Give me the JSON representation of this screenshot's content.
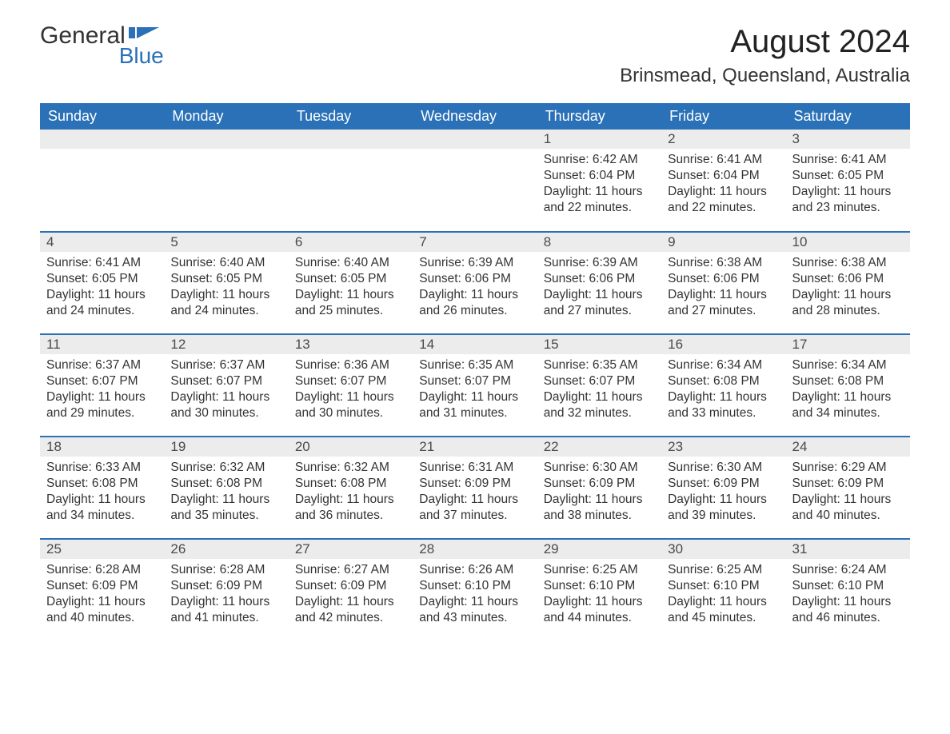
{
  "logo": {
    "word1": "General",
    "word2": "Blue",
    "brand_color": "#2a71b8"
  },
  "title": "August 2024",
  "location": "Brinsmead, Queensland, Australia",
  "colors": {
    "header_bg": "#2a71b8",
    "header_text": "#ffffff",
    "daynum_bg": "#ececec",
    "row_divider": "#2a71b8",
    "body_text": "#333333",
    "page_bg": "#ffffff"
  },
  "typography": {
    "title_fontsize_pt": 30,
    "location_fontsize_pt": 18,
    "header_fontsize_pt": 14,
    "body_fontsize_pt": 12
  },
  "day_headers": [
    "Sunday",
    "Monday",
    "Tuesday",
    "Wednesday",
    "Thursday",
    "Friday",
    "Saturday"
  ],
  "weeks": [
    [
      null,
      null,
      null,
      null,
      {
        "n": "1",
        "sunrise": "6:42 AM",
        "sunset": "6:04 PM",
        "dl_h": "11",
        "dl_m": "22"
      },
      {
        "n": "2",
        "sunrise": "6:41 AM",
        "sunset": "6:04 PM",
        "dl_h": "11",
        "dl_m": "22"
      },
      {
        "n": "3",
        "sunrise": "6:41 AM",
        "sunset": "6:05 PM",
        "dl_h": "11",
        "dl_m": "23"
      }
    ],
    [
      {
        "n": "4",
        "sunrise": "6:41 AM",
        "sunset": "6:05 PM",
        "dl_h": "11",
        "dl_m": "24"
      },
      {
        "n": "5",
        "sunrise": "6:40 AM",
        "sunset": "6:05 PM",
        "dl_h": "11",
        "dl_m": "24"
      },
      {
        "n": "6",
        "sunrise": "6:40 AM",
        "sunset": "6:05 PM",
        "dl_h": "11",
        "dl_m": "25"
      },
      {
        "n": "7",
        "sunrise": "6:39 AM",
        "sunset": "6:06 PM",
        "dl_h": "11",
        "dl_m": "26"
      },
      {
        "n": "8",
        "sunrise": "6:39 AM",
        "sunset": "6:06 PM",
        "dl_h": "11",
        "dl_m": "27"
      },
      {
        "n": "9",
        "sunrise": "6:38 AM",
        "sunset": "6:06 PM",
        "dl_h": "11",
        "dl_m": "27"
      },
      {
        "n": "10",
        "sunrise": "6:38 AM",
        "sunset": "6:06 PM",
        "dl_h": "11",
        "dl_m": "28"
      }
    ],
    [
      {
        "n": "11",
        "sunrise": "6:37 AM",
        "sunset": "6:07 PM",
        "dl_h": "11",
        "dl_m": "29"
      },
      {
        "n": "12",
        "sunrise": "6:37 AM",
        "sunset": "6:07 PM",
        "dl_h": "11",
        "dl_m": "30"
      },
      {
        "n": "13",
        "sunrise": "6:36 AM",
        "sunset": "6:07 PM",
        "dl_h": "11",
        "dl_m": "30"
      },
      {
        "n": "14",
        "sunrise": "6:35 AM",
        "sunset": "6:07 PM",
        "dl_h": "11",
        "dl_m": "31"
      },
      {
        "n": "15",
        "sunrise": "6:35 AM",
        "sunset": "6:07 PM",
        "dl_h": "11",
        "dl_m": "32"
      },
      {
        "n": "16",
        "sunrise": "6:34 AM",
        "sunset": "6:08 PM",
        "dl_h": "11",
        "dl_m": "33"
      },
      {
        "n": "17",
        "sunrise": "6:34 AM",
        "sunset": "6:08 PM",
        "dl_h": "11",
        "dl_m": "34"
      }
    ],
    [
      {
        "n": "18",
        "sunrise": "6:33 AM",
        "sunset": "6:08 PM",
        "dl_h": "11",
        "dl_m": "34"
      },
      {
        "n": "19",
        "sunrise": "6:32 AM",
        "sunset": "6:08 PM",
        "dl_h": "11",
        "dl_m": "35"
      },
      {
        "n": "20",
        "sunrise": "6:32 AM",
        "sunset": "6:08 PM",
        "dl_h": "11",
        "dl_m": "36"
      },
      {
        "n": "21",
        "sunrise": "6:31 AM",
        "sunset": "6:09 PM",
        "dl_h": "11",
        "dl_m": "37"
      },
      {
        "n": "22",
        "sunrise": "6:30 AM",
        "sunset": "6:09 PM",
        "dl_h": "11",
        "dl_m": "38"
      },
      {
        "n": "23",
        "sunrise": "6:30 AM",
        "sunset": "6:09 PM",
        "dl_h": "11",
        "dl_m": "39"
      },
      {
        "n": "24",
        "sunrise": "6:29 AM",
        "sunset": "6:09 PM",
        "dl_h": "11",
        "dl_m": "40"
      }
    ],
    [
      {
        "n": "25",
        "sunrise": "6:28 AM",
        "sunset": "6:09 PM",
        "dl_h": "11",
        "dl_m": "40"
      },
      {
        "n": "26",
        "sunrise": "6:28 AM",
        "sunset": "6:09 PM",
        "dl_h": "11",
        "dl_m": "41"
      },
      {
        "n": "27",
        "sunrise": "6:27 AM",
        "sunset": "6:09 PM",
        "dl_h": "11",
        "dl_m": "42"
      },
      {
        "n": "28",
        "sunrise": "6:26 AM",
        "sunset": "6:10 PM",
        "dl_h": "11",
        "dl_m": "43"
      },
      {
        "n": "29",
        "sunrise": "6:25 AM",
        "sunset": "6:10 PM",
        "dl_h": "11",
        "dl_m": "44"
      },
      {
        "n": "30",
        "sunrise": "6:25 AM",
        "sunset": "6:10 PM",
        "dl_h": "11",
        "dl_m": "45"
      },
      {
        "n": "31",
        "sunrise": "6:24 AM",
        "sunset": "6:10 PM",
        "dl_h": "11",
        "dl_m": "46"
      }
    ]
  ],
  "labels": {
    "sunrise": "Sunrise:",
    "sunset": "Sunset:",
    "daylight": "Daylight:",
    "hours_word": "hours",
    "and_word": "and",
    "minutes_word": "minutes."
  }
}
